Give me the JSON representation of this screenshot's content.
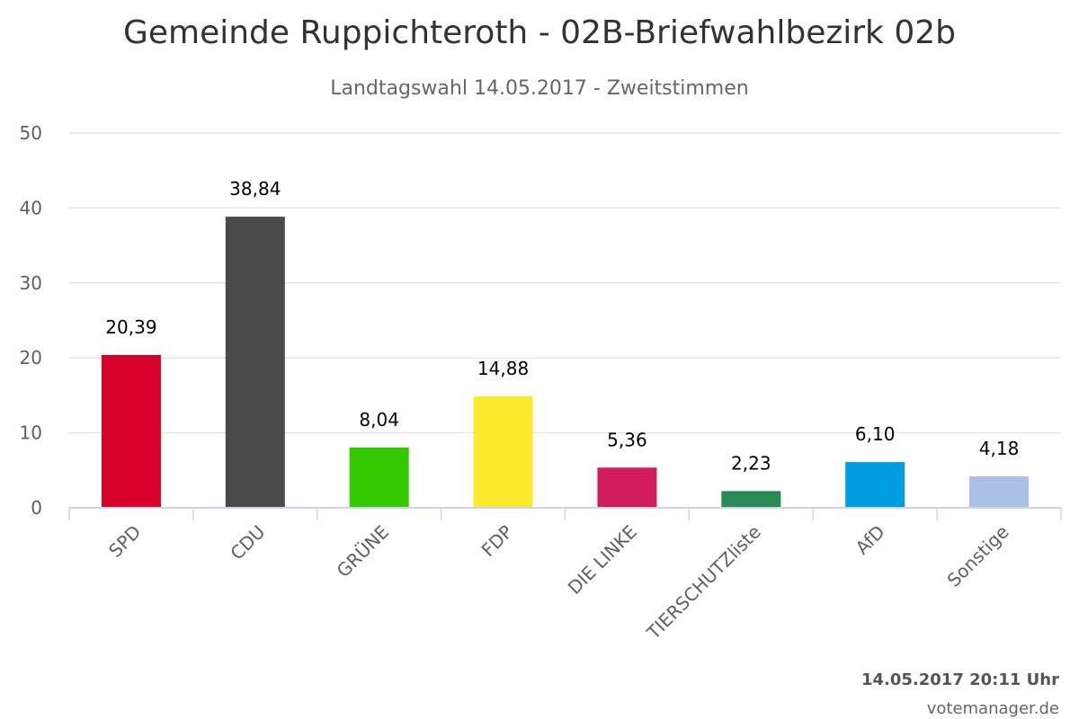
{
  "footer": {
    "timestamp": "14.05.2017 20:11 Uhr",
    "credit": "votemanager.de"
  },
  "chart_data": {
    "type": "bar",
    "title": "Gemeinde Ruppichteroth - 02B-Briefwahlbezirk 02b",
    "subtitle": "Landtagswahl 14.05.2017 - Zweitstimmen",
    "xlabel": "",
    "ylabel": "",
    "ylim": [
      0,
      50
    ],
    "yticks": [
      0,
      10,
      20,
      30,
      40,
      50
    ],
    "grid": true,
    "legend": "none",
    "categories": [
      "SPD",
      "CDU",
      "GRÜNE",
      "FDP",
      "DIE LINKE",
      "TIERSCHUTZliste",
      "AfD",
      "Sonstige"
    ],
    "values": [
      20.39,
      38.84,
      8.04,
      14.88,
      5.36,
      2.23,
      6.1,
      4.18
    ],
    "value_labels": [
      "20,39",
      "38,84",
      "8,04",
      "14,88",
      "5,36",
      "2,23",
      "6,10",
      "4,18"
    ],
    "colors": [
      "#d7002b",
      "#4a4a4a",
      "#35c900",
      "#fbea2d",
      "#d11c5b",
      "#2a8a53",
      "#009ee0",
      "#aabfe4"
    ]
  }
}
